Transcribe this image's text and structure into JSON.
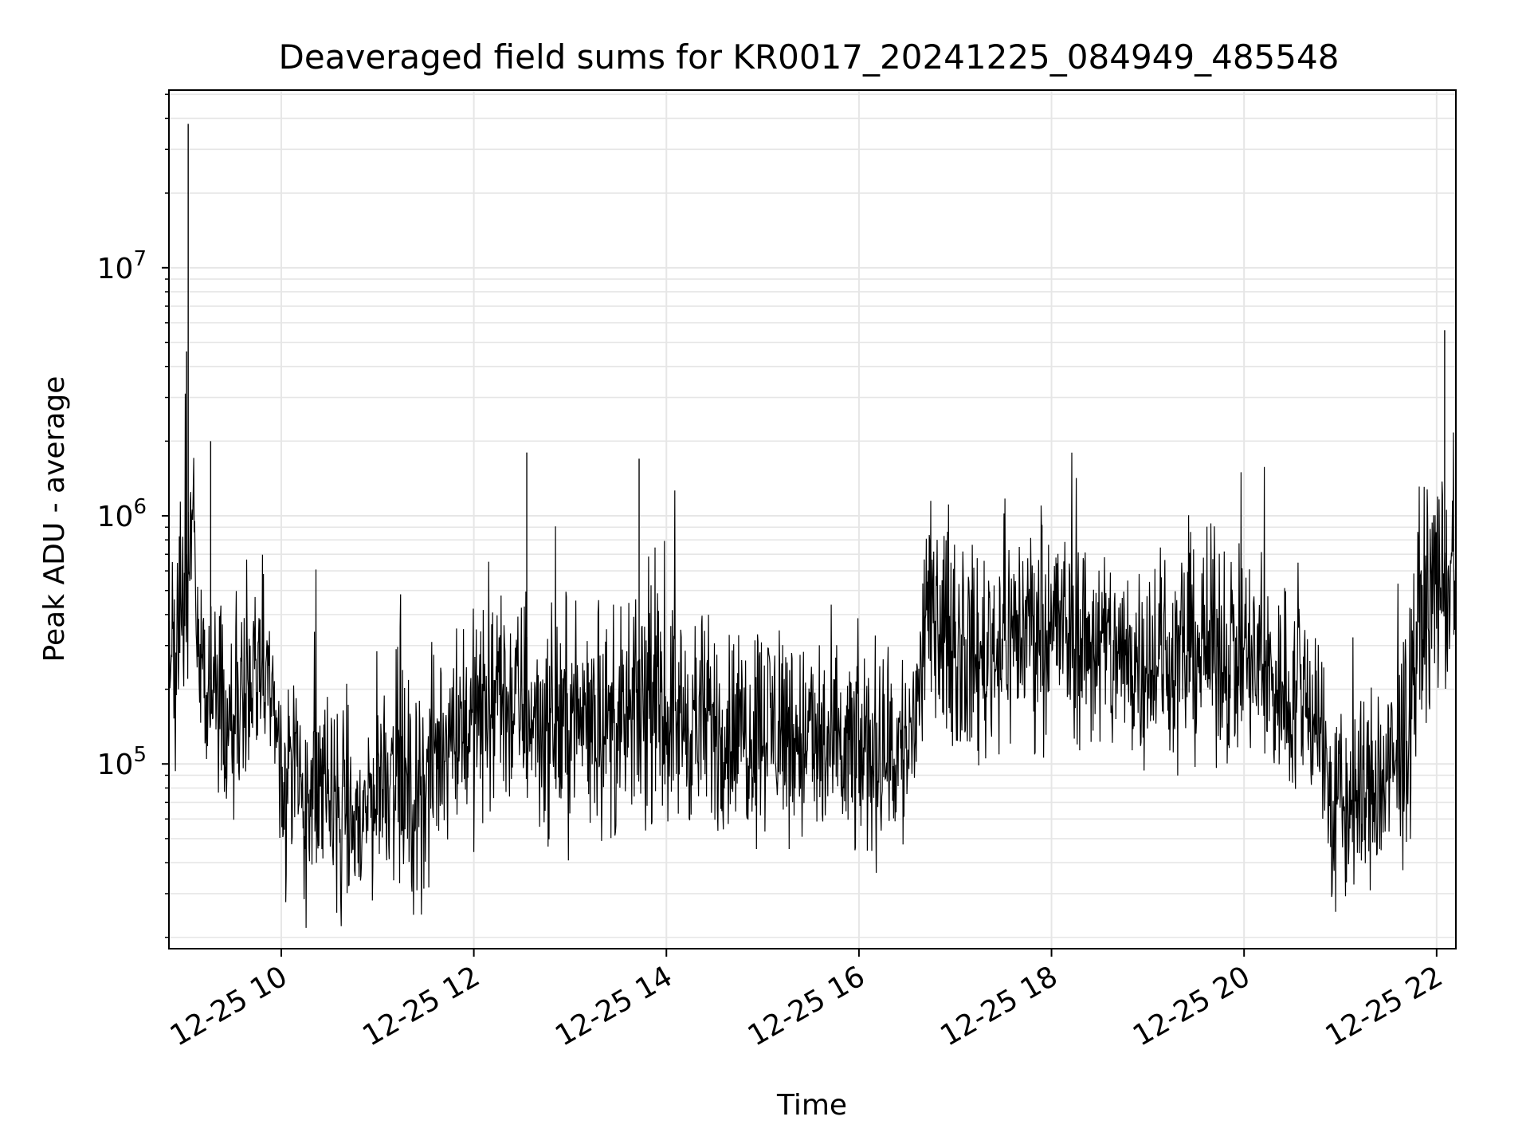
{
  "chart_data": {
    "type": "line",
    "title": "Deaveraged field sums for KR0017_20241225_084949_485548",
    "xlabel": "Time",
    "ylabel": "Peak ADU - average",
    "yscale": "log",
    "xlim": [
      "12-25 08:50",
      "12-25 22:12"
    ],
    "ylim": [
      18000,
      52000000
    ],
    "grid": true,
    "x_tick_labels": [
      "12-25 10",
      "12-25 12",
      "12-25 14",
      "12-25 16",
      "12-25 18",
      "12-25 20",
      "12-25 22"
    ],
    "y_tick_labels": [
      {
        "base": "10",
        "exp": "5"
      },
      {
        "base": "10",
        "exp": "6"
      },
      {
        "base": "10",
        "exp": "7"
      }
    ],
    "colors": {
      "line": "#000000",
      "grid": "#e6e6e6",
      "axes": "#000000"
    },
    "series": [
      {
        "x": [
          "12-25 08:50",
          "12-25 09:00",
          "12-25 09:05",
          "12-25 09:10",
          "12-25 09:20",
          "12-25 09:30",
          "12-25 09:40",
          "12-25 09:50",
          "12-25 10:00",
          "12-25 10:10",
          "12-25 10:20",
          "12-25 10:30",
          "12-25 10:40",
          "12-25 10:50",
          "12-25 11:00",
          "12-25 11:10",
          "12-25 11:20",
          "12-25 11:30",
          "12-25 11:40",
          "12-25 11:50",
          "12-25 12:00",
          "12-25 12:15",
          "12-25 12:30",
          "12-25 12:45",
          "12-25 13:00",
          "12-25 13:15",
          "12-25 13:30",
          "12-25 13:45",
          "12-25 14:00",
          "12-25 14:15",
          "12-25 14:30",
          "12-25 14:45",
          "12-25 15:00",
          "12-25 15:15",
          "12-25 15:30",
          "12-25 15:45",
          "12-25 16:00",
          "12-25 16:15",
          "12-25 16:30",
          "12-25 16:45",
          "12-25 17:00",
          "12-25 17:15",
          "12-25 17:30",
          "12-25 17:45",
          "12-25 18:00",
          "12-25 18:15",
          "12-25 18:30",
          "12-25 18:45",
          "12-25 19:00",
          "12-25 19:15",
          "12-25 19:30",
          "12-25 19:45",
          "12-25 20:00",
          "12-25 20:15",
          "12-25 20:30",
          "12-25 20:45",
          "12-25 20:55",
          "12-25 21:05",
          "12-25 21:15",
          "12-25 21:30",
          "12-25 21:40",
          "12-25 21:50",
          "12-25 22:00",
          "12-25 22:12"
        ],
        "y": [
          250000,
          450000,
          900000,
          250000,
          200000,
          150000,
          170000,
          300000,
          100000,
          80000,
          70000,
          75000,
          60000,
          55000,
          90000,
          100000,
          70000,
          80000,
          120000,
          150000,
          150000,
          180000,
          170000,
          140000,
          150000,
          160000,
          130000,
          170000,
          160000,
          150000,
          140000,
          130000,
          150000,
          140000,
          120000,
          110000,
          110000,
          115000,
          110000,
          400000,
          300000,
          260000,
          330000,
          350000,
          380000,
          320000,
          300000,
          260000,
          280000,
          260000,
          300000,
          290000,
          270000,
          220000,
          190000,
          180000,
          60000,
          70000,
          75000,
          85000,
          110000,
          400000,
          550000,
          500000
        ]
      }
    ],
    "spikes": [
      {
        "x": "12-25 09:02",
        "y": 38000000
      },
      {
        "x": "12-25 09:01",
        "y": 4600000
      },
      {
        "x": "12-25 09:16",
        "y": 2000000
      },
      {
        "x": "12-25 12:33",
        "y": 1800000
      },
      {
        "x": "12-25 13:43",
        "y": 1700000
      },
      {
        "x": "12-25 22:05",
        "y": 5600000
      }
    ]
  }
}
